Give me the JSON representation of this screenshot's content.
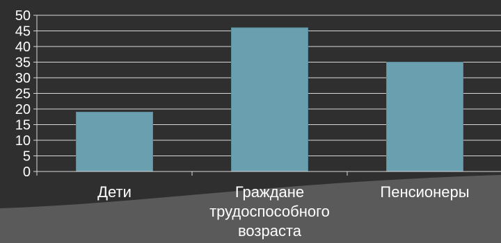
{
  "chart_data": {
    "type": "bar",
    "title": "",
    "xlabel": "",
    "ylabel": "",
    "categories": [
      "Дети",
      "Граждане трудоспособного возраста",
      "Пенсионеры"
    ],
    "category_lines": [
      [
        "Дети"
      ],
      [
        "Граждане",
        "трудоспособного",
        "возраста"
      ],
      [
        "Пенсионеры"
      ]
    ],
    "values": [
      19,
      46,
      35
    ],
    "ylim": [
      0,
      50
    ],
    "yticks": [
      0,
      5,
      10,
      15,
      20,
      25,
      30,
      35,
      40,
      45,
      50
    ],
    "grid": true,
    "legend": "none",
    "colors": {
      "bar": "#6a9fb0",
      "bar_edge": "#5b8d9e",
      "background": "#2f2f2f",
      "wave": "#5a5a5a",
      "gridline": "#d8d8d8",
      "text": "#ffffff"
    }
  }
}
